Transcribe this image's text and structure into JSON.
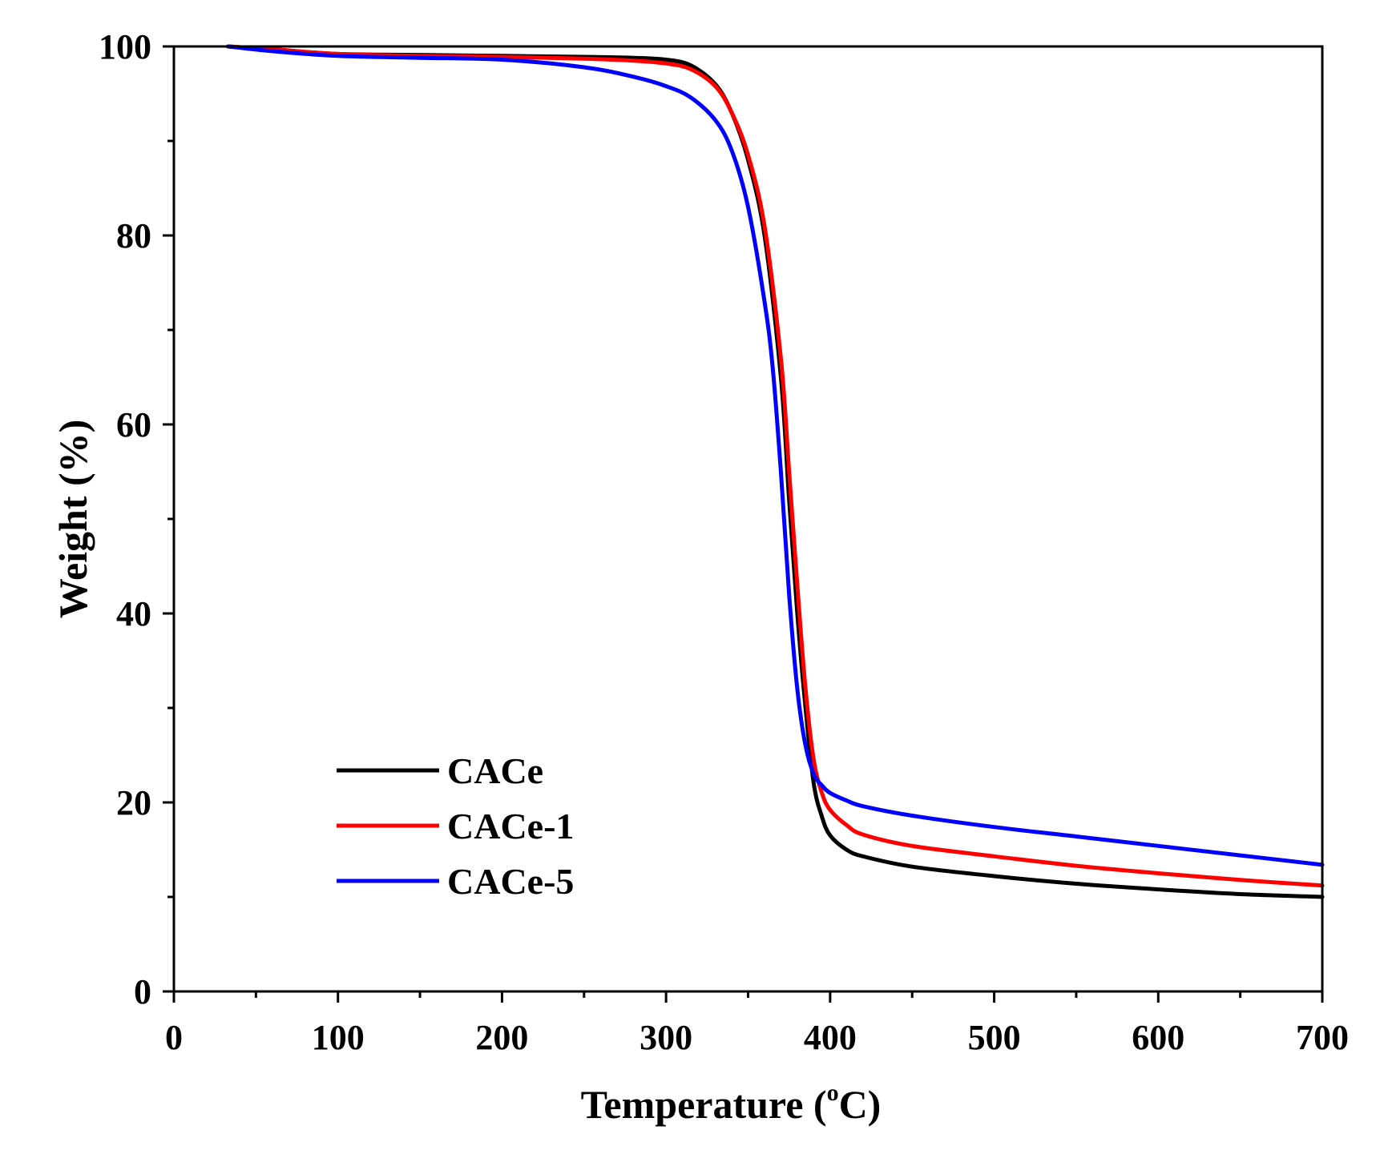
{
  "chart_data": {
    "type": "line",
    "title": "",
    "xlabel_main": "Temperature (",
    "xlabel_sup": "o",
    "xlabel_unit": "C)",
    "ylabel": "Weight (%)",
    "xlim": [
      0,
      700
    ],
    "ylim": [
      0,
      100
    ],
    "x_ticks": [
      "0",
      "100",
      "200",
      "300",
      "400",
      "500",
      "600",
      "700"
    ],
    "y_ticks": [
      "0",
      "20",
      "40",
      "60",
      "80",
      "100"
    ],
    "grid": false,
    "legend_position": "bottom-left",
    "series": [
      {
        "name": "CACe",
        "color": "#000000",
        "x": [
          33,
          60,
          100,
          150,
          200,
          250,
          280,
          300,
          315,
          330,
          340,
          350,
          360,
          370,
          375,
          380,
          385,
          390,
          395,
          400,
          410,
          420,
          450,
          500,
          550,
          600,
          650,
          700
        ],
        "y": [
          100,
          99.7,
          99.2,
          99.1,
          99.0,
          98.9,
          98.8,
          98.6,
          98.0,
          96.0,
          93.0,
          88.0,
          80.0,
          65.0,
          52.0,
          40.0,
          30.0,
          22.0,
          18.5,
          16.5,
          15.0,
          14.3,
          13.2,
          12.2,
          11.4,
          10.8,
          10.3,
          10.0
        ]
      },
      {
        "name": "CACe-1",
        "color": "#ff0000",
        "x": [
          33,
          60,
          100,
          150,
          200,
          250,
          280,
          300,
          315,
          330,
          340,
          350,
          360,
          370,
          375,
          380,
          385,
          390,
          395,
          400,
          410,
          420,
          450,
          500,
          550,
          600,
          650,
          700
        ],
        "y": [
          100,
          99.7,
          99.2,
          99.0,
          98.9,
          98.7,
          98.5,
          98.2,
          97.6,
          95.8,
          93.0,
          88.5,
          81.0,
          67.0,
          55.0,
          43.0,
          32.0,
          24.5,
          21.0,
          19.2,
          17.6,
          16.6,
          15.4,
          14.3,
          13.3,
          12.5,
          11.8,
          11.2
        ]
      },
      {
        "name": "CACe-5",
        "color": "#0000ff",
        "x": [
          33,
          60,
          100,
          150,
          200,
          250,
          280,
          300,
          315,
          330,
          340,
          350,
          360,
          365,
          370,
          375,
          380,
          385,
          390,
          395,
          400,
          410,
          420,
          450,
          500,
          550,
          600,
          650,
          700
        ],
        "y": [
          100,
          99.5,
          99.0,
          98.8,
          98.6,
          97.8,
          96.8,
          95.8,
          94.6,
          92.2,
          89.0,
          83.0,
          73.0,
          66.0,
          55.0,
          42.0,
          32.0,
          26.0,
          23.0,
          21.8,
          21.0,
          20.2,
          19.6,
          18.6,
          17.4,
          16.4,
          15.4,
          14.4,
          13.4
        ]
      }
    ]
  }
}
